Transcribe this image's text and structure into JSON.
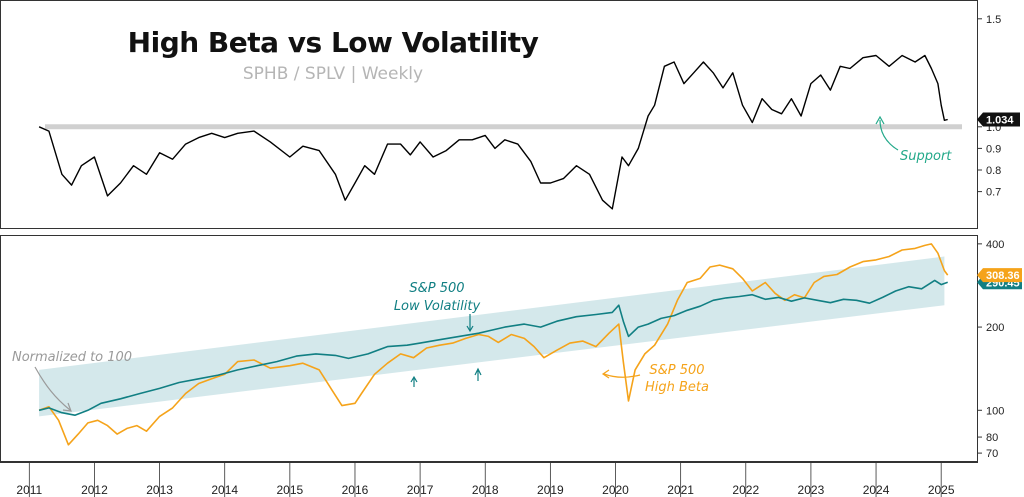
{
  "chart_data": [
    {
      "type": "line",
      "title": "High Beta vs Low Volatility",
      "subtitle": "SPHB / SPLV  |  Weekly",
      "y_scale": "linear",
      "ylim": [
        0.55,
        1.55
      ],
      "y_ticks": [
        "1.5",
        "1.0",
        "0.9",
        "0.8",
        "0.7"
      ],
      "y_tick_values": [
        1.5,
        1.0,
        0.9,
        0.8,
        0.7
      ],
      "reference_line": 1.0,
      "last_value_label": "1.034",
      "annotation": "Support",
      "series": [
        {
          "color": "#000000",
          "x": [
            2011.15,
            2011.3,
            2011.5,
            2011.65,
            2011.8,
            2012.0,
            2012.2,
            2012.4,
            2012.6,
            2012.8,
            2013.0,
            2013.2,
            2013.4,
            2013.6,
            2013.8,
            2014.0,
            2014.2,
            2014.45,
            2014.7,
            2015.0,
            2015.2,
            2015.45,
            2015.7,
            2015.85,
            2016.0,
            2016.15,
            2016.3,
            2016.5,
            2016.7,
            2016.85,
            2017.0,
            2017.2,
            2017.4,
            2017.6,
            2017.8,
            2018.0,
            2018.15,
            2018.3,
            2018.5,
            2018.7,
            2018.85,
            2019.0,
            2019.2,
            2019.4,
            2019.6,
            2019.8,
            2019.95,
            2020.1,
            2020.2,
            2020.35,
            2020.5,
            2020.6,
            2020.75,
            2020.9,
            2021.05,
            2021.2,
            2021.35,
            2021.5,
            2021.65,
            2021.8,
            2021.95,
            2022.1,
            2022.25,
            2022.4,
            2022.55,
            2022.7,
            2022.85,
            2023.0,
            2023.15,
            2023.3,
            2023.45,
            2023.6,
            2023.8,
            2024.0,
            2024.2,
            2024.4,
            2024.6,
            2024.75,
            2024.85,
            2024.95,
            2025.0,
            2025.05,
            2025.1
          ],
          "values": [
            1.0,
            0.98,
            0.78,
            0.73,
            0.82,
            0.86,
            0.68,
            0.74,
            0.82,
            0.78,
            0.88,
            0.85,
            0.92,
            0.95,
            0.97,
            0.95,
            0.97,
            0.98,
            0.93,
            0.86,
            0.91,
            0.89,
            0.78,
            0.66,
            0.74,
            0.82,
            0.78,
            0.92,
            0.92,
            0.87,
            0.93,
            0.86,
            0.89,
            0.94,
            0.94,
            0.96,
            0.9,
            0.94,
            0.92,
            0.84,
            0.74,
            0.74,
            0.76,
            0.82,
            0.78,
            0.66,
            0.62,
            0.86,
            0.82,
            0.9,
            1.05,
            1.1,
            1.28,
            1.3,
            1.2,
            1.25,
            1.3,
            1.25,
            1.18,
            1.25,
            1.1,
            1.02,
            1.13,
            1.08,
            1.06,
            1.13,
            1.05,
            1.2,
            1.24,
            1.17,
            1.28,
            1.27,
            1.32,
            1.33,
            1.28,
            1.33,
            1.3,
            1.33,
            1.27,
            1.2,
            1.1,
            1.03,
            1.034
          ]
        }
      ]
    },
    {
      "type": "line",
      "y_scale": "log",
      "ylim": [
        65,
        420
      ],
      "y_ticks": [
        "400",
        "200",
        "100",
        "80",
        "70"
      ],
      "y_tick_values": [
        400,
        200,
        100,
        80,
        70
      ],
      "x_tick_labels": [
        "2011",
        "2012",
        "2013",
        "2014",
        "2015",
        "2016",
        "2017",
        "2018",
        "2019",
        "2020",
        "2021",
        "2022",
        "2023",
        "2024",
        "2025"
      ],
      "x_tick_values": [
        2011,
        2012,
        2013,
        2014,
        2015,
        2016,
        2017,
        2018,
        2019,
        2020,
        2021,
        2022,
        2023,
        2024,
        2025
      ],
      "xlim": [
        2010.55,
        2025.55
      ],
      "channel": {
        "color": "#d2e7ea",
        "x": [
          2011.15,
          2025.05
        ],
        "upper": [
          140,
          360
        ],
        "lower": [
          95,
          240
        ]
      },
      "annotations": [
        "Normalized to 100",
        "S&P 500",
        "Low Volatility",
        "S&P 500",
        "High Beta"
      ],
      "series": [
        {
          "name": "S&P 500 High Beta",
          "color": "#f5a31a",
          "last_value_label": "308.36",
          "x": [
            2011.15,
            2011.3,
            2011.45,
            2011.6,
            2011.75,
            2011.9,
            2012.05,
            2012.2,
            2012.35,
            2012.5,
            2012.65,
            2012.8,
            2013.0,
            2013.2,
            2013.4,
            2013.6,
            2013.8,
            2014.0,
            2014.2,
            2014.45,
            2014.7,
            2015.0,
            2015.2,
            2015.45,
            2015.65,
            2015.8,
            2016.0,
            2016.1,
            2016.3,
            2016.5,
            2016.7,
            2016.9,
            2017.1,
            2017.3,
            2017.5,
            2017.7,
            2017.9,
            2018.05,
            2018.2,
            2018.4,
            2018.6,
            2018.75,
            2018.9,
            2019.1,
            2019.3,
            2019.5,
            2019.7,
            2019.9,
            2020.05,
            2020.12,
            2020.2,
            2020.3,
            2020.45,
            2020.6,
            2020.8,
            2020.95,
            2021.1,
            2021.3,
            2021.45,
            2021.6,
            2021.8,
            2021.95,
            2022.1,
            2022.3,
            2022.45,
            2022.6,
            2022.75,
            2022.9,
            2023.05,
            2023.2,
            2023.4,
            2023.6,
            2023.8,
            2024.0,
            2024.2,
            2024.4,
            2024.6,
            2024.75,
            2024.85,
            2024.95,
            2025.05,
            2025.1
          ],
          "values": [
            100,
            103,
            92,
            75,
            82,
            90,
            92,
            88,
            82,
            86,
            88,
            84,
            95,
            102,
            115,
            125,
            130,
            135,
            150,
            152,
            142,
            145,
            148,
            140,
            118,
            104,
            106,
            115,
            135,
            148,
            160,
            155,
            168,
            172,
            175,
            182,
            188,
            185,
            176,
            188,
            182,
            170,
            155,
            165,
            175,
            178,
            170,
            190,
            205,
            150,
            108,
            140,
            160,
            172,
            205,
            250,
            290,
            300,
            330,
            335,
            325,
            300,
            270,
            290,
            265,
            250,
            262,
            255,
            290,
            305,
            310,
            330,
            345,
            350,
            360,
            380,
            385,
            395,
            400,
            370,
            320,
            308.36
          ]
        },
        {
          "name": "S&P 500 Low Volatility",
          "color": "#117f83",
          "last_value_label": "290.45",
          "x": [
            2011.15,
            2011.3,
            2011.5,
            2011.7,
            2011.9,
            2012.1,
            2012.4,
            2012.7,
            2013.0,
            2013.3,
            2013.6,
            2013.9,
            2014.2,
            2014.5,
            2014.8,
            2015.1,
            2015.4,
            2015.7,
            2015.9,
            2016.2,
            2016.5,
            2016.8,
            2017.0,
            2017.3,
            2017.6,
            2017.9,
            2018.1,
            2018.3,
            2018.6,
            2018.85,
            2019.1,
            2019.4,
            2019.7,
            2019.95,
            2020.05,
            2020.12,
            2020.2,
            2020.35,
            2020.5,
            2020.7,
            2020.9,
            2021.1,
            2021.3,
            2021.5,
            2021.7,
            2021.9,
            2022.1,
            2022.3,
            2022.5,
            2022.7,
            2022.9,
            2023.1,
            2023.3,
            2023.5,
            2023.7,
            2023.9,
            2024.1,
            2024.3,
            2024.5,
            2024.7,
            2024.9,
            2025.0,
            2025.1
          ],
          "values": [
            100,
            102,
            98,
            96,
            100,
            106,
            110,
            115,
            120,
            126,
            130,
            134,
            140,
            145,
            150,
            157,
            160,
            158,
            154,
            160,
            170,
            172,
            175,
            180,
            185,
            190,
            195,
            200,
            205,
            200,
            210,
            218,
            222,
            226,
            240,
            210,
            185,
            200,
            205,
            215,
            220,
            230,
            238,
            250,
            255,
            258,
            262,
            252,
            256,
            248,
            255,
            250,
            245,
            252,
            250,
            244,
            256,
            270,
            280,
            275,
            295,
            285,
            290.45
          ]
        }
      ]
    }
  ]
}
